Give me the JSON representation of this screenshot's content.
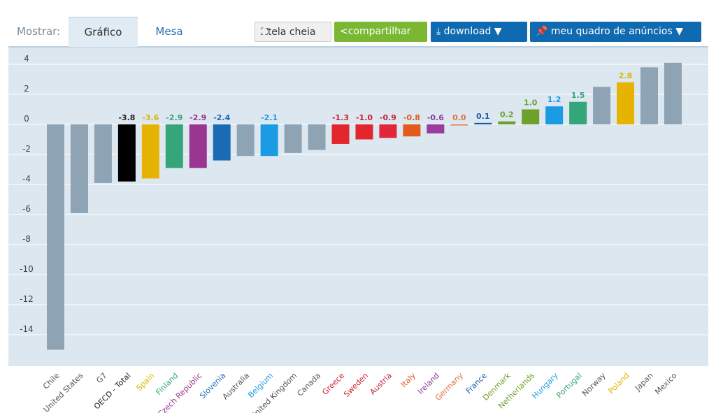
{
  "toolbar": {
    "show_label": "Mostrar:",
    "tab_chart": "Gráfico",
    "tab_table": "Mesa",
    "fullscreen": "tela cheia",
    "share": "compartilhar",
    "download": "download ▼",
    "dashboard": "meu quadro de anúncios ▼"
  },
  "icons": {
    "fullscreen": "expand-icon",
    "share": "share-icon",
    "download": "download-icon",
    "dashboard": "pin-icon"
  },
  "chart_data": {
    "type": "bar",
    "title": "",
    "xlabel": "",
    "ylabel": "",
    "ylim": [
      -16,
      5
    ],
    "grid": true,
    "yticks": [
      4,
      2,
      0,
      -2,
      -4,
      -6,
      -8,
      -10,
      -12,
      -14
    ],
    "categories": [
      "Chile",
      "United States",
      "G7",
      "OECD - Total",
      "Spain",
      "Finland",
      "Czech Republic",
      "Slovenia",
      "Australia",
      "Belgium",
      "United Kingdom",
      "Canada",
      "Greece",
      "Sweden",
      "Austria",
      "Italy",
      "Ireland",
      "Germany",
      "France",
      "Denmark",
      "Netherlands",
      "Hungary",
      "Portugal",
      "Norway",
      "Poland",
      "Japan",
      "Mexico"
    ],
    "values": [
      -15.0,
      -5.9,
      -3.9,
      -3.8,
      -3.6,
      -2.9,
      -2.9,
      -2.4,
      -2.1,
      -2.1,
      -1.9,
      -1.7,
      -1.3,
      -1.0,
      -0.9,
      -0.8,
      -0.6,
      0.0,
      0.1,
      0.2,
      1.0,
      1.2,
      1.5,
      2.5,
      2.8,
      3.8,
      4.1
    ],
    "data_labels": [
      null,
      null,
      null,
      "-3.8",
      "-3.6",
      "-2.9",
      "-2.9",
      "-2.4",
      null,
      "-2.1",
      null,
      null,
      "-1.3",
      "-1.0",
      "-0.9",
      "-0.8",
      "-0.6",
      "0.0",
      "0.1",
      "0.2",
      "1.0",
      "1.2",
      "1.5",
      null,
      "2.8",
      null,
      null
    ],
    "colors": [
      "#8ea4b4",
      "#8ea4b4",
      "#8ea4b4",
      "#000000",
      "#e6b400",
      "#35a57a",
      "#9a3590",
      "#1b6ab4",
      "#8ea4b4",
      "#1a9be3",
      "#8ea4b4",
      "#8ea4b4",
      "#e3262e",
      "#e3262e",
      "#e0283a",
      "#e45a1e",
      "#9a3c9e",
      "#e07040",
      "#1a5ea8",
      "#6ea12c",
      "#6ea12c",
      "#1a9be3",
      "#35a57a",
      "#8ea4b4",
      "#e6b400",
      "#8ea4b4",
      "#8ea4b4"
    ],
    "label_colors": [
      "#555",
      "#555",
      "#555",
      "#222",
      "#e0b400",
      "#35a57a",
      "#9a3590",
      "#1b6ab4",
      "#555",
      "#1a9be3",
      "#555",
      "#555",
      "#d02030",
      "#d02030",
      "#c02840",
      "#e45a1e",
      "#8a3c9e",
      "#e07040",
      "#1a5ea8",
      "#6ea12c",
      "#6ea12c",
      "#1a9be3",
      "#35a57a",
      "#555",
      "#e0b400",
      "#555",
      "#555"
    ]
  }
}
